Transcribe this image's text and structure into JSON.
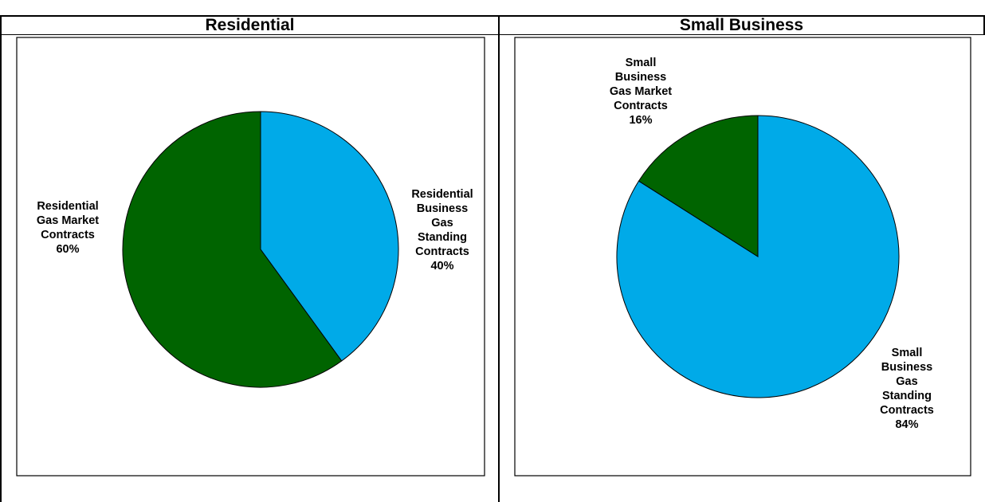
{
  "headers": {
    "left": "Residential",
    "right": "Small Business"
  },
  "colors": {
    "market": "#006400",
    "standing": "#00aae8"
  },
  "chart_data": [
    {
      "type": "pie",
      "title": "Residential",
      "slices": [
        {
          "label_lines": [
            "Residential",
            "Business",
            "Gas",
            "Standing",
            "Contracts",
            "40%"
          ],
          "value": 40,
          "color": "#00aae8"
        },
        {
          "label_lines": [
            "Residential",
            "Gas Market",
            "Contracts",
            "60%"
          ],
          "value": 60,
          "color": "#006400"
        }
      ]
    },
    {
      "type": "pie",
      "title": "Small Business",
      "slices": [
        {
          "label_lines": [
            "Small",
            "Business",
            "Gas",
            "Standing",
            "Contracts",
            "84%"
          ],
          "value": 84,
          "color": "#00aae8"
        },
        {
          "label_lines": [
            "Small",
            "Business",
            "Gas Market",
            "Contracts",
            "16%"
          ],
          "value": 16,
          "color": "#006400"
        }
      ]
    }
  ]
}
